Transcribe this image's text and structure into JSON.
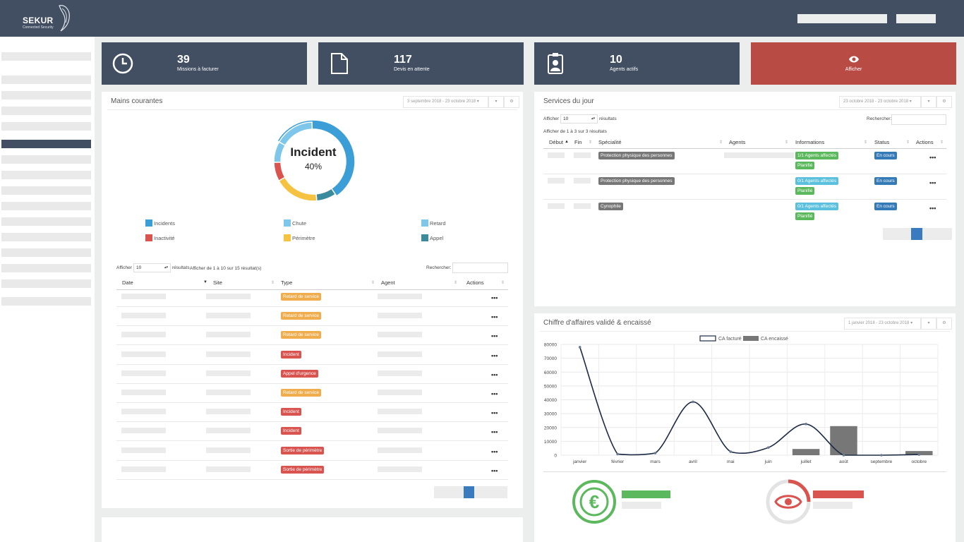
{
  "brand": {
    "name": "SEKUR",
    "tagline": "Connected Security"
  },
  "tiles": [
    {
      "number": "39",
      "label": "Missions à facturer",
      "icon": "clock-icon"
    },
    {
      "number": "117",
      "label": "Devis en attente",
      "icon": "document-icon"
    },
    {
      "number": "10",
      "label": "Agents actifs",
      "icon": "badge-icon"
    },
    {
      "label": "Afficher",
      "icon": "eye-icon"
    }
  ],
  "mains": {
    "title": "Mains courantes",
    "date_range": "3 septembre 2018 - 23 octobre 2018",
    "donut_title": "Incident",
    "donut_percent": "40%",
    "legend": [
      {
        "label": "Incidents",
        "color": "#3b9ed6"
      },
      {
        "label": "Chute",
        "color": "#7fc7ea"
      },
      {
        "label": "Retard",
        "color": "#7fc7ea"
      },
      {
        "label": "Inactivité",
        "color": "#d9534f"
      },
      {
        "label": "Périmètre",
        "color": "#f5c242"
      },
      {
        "label": "Appel",
        "color": "#3a8b9c"
      }
    ],
    "show_label": "Afficher",
    "page_size": "10",
    "results_label": "résultats",
    "info": "Afficher de 1 à 10 sur 15 résultat(s)",
    "search_label": "Rechercher:",
    "columns": [
      "Date",
      "Site",
      "Type",
      "Agent",
      "Actions"
    ],
    "rows": [
      {
        "type": "Retard de service",
        "color": "orange"
      },
      {
        "type": "Retard de service",
        "color": "orange"
      },
      {
        "type": "Retard de service",
        "color": "orange"
      },
      {
        "type": "Incident",
        "color": "red"
      },
      {
        "type": "Appel d'urgence",
        "color": "red"
      },
      {
        "type": "Retard de service",
        "color": "orange"
      },
      {
        "type": "Incident",
        "color": "red"
      },
      {
        "type": "Incident",
        "color": "red"
      },
      {
        "type": "Sortie de périmètre",
        "color": "red"
      },
      {
        "type": "Sortie de périmètre",
        "color": "red"
      }
    ],
    "actions_glyph": "•••"
  },
  "services": {
    "title": "Services du jour",
    "date_range": "23 octobre 2018 - 23 octobre 2018",
    "show_label": "Afficher",
    "page_size": "10",
    "results_label": "résultats",
    "search_label": "Rechercher:",
    "info": "Afficher de 1 à 3 sur 3 résultats",
    "columns": [
      "Début",
      "Fin",
      "Spécialité",
      "Agents",
      "Informations",
      "Status",
      "Actions"
    ],
    "rows": [
      {
        "specialite": "Protection physique des personnes",
        "info1": "1/1 Agents affectés",
        "info1_color": "green",
        "info2": "Planifié",
        "status": "En cours"
      },
      {
        "specialite": "Protection physique des personnes",
        "info1": "0/1 Agents affectés",
        "info1_color": "cyan",
        "info2": "Planifié",
        "status": "En cours"
      },
      {
        "specialite": "Cynophile",
        "info1": "0/1 Agents affectés",
        "info1_color": "cyan",
        "info2": "Planifié",
        "status": "En cours"
      }
    ],
    "actions_glyph": "•••"
  },
  "ca": {
    "title": "Chiffre d'affaires validé & encaissé",
    "date_range": "1 janvier 2018 - 23 octobre 2018"
  },
  "chart_data": {
    "type": "bar",
    "categories": [
      "janvier",
      "février",
      "mars",
      "avril",
      "mai",
      "juin",
      "juillet",
      "août",
      "septembre",
      "octobre"
    ],
    "series": [
      {
        "name": "CA facturé",
        "type": "line",
        "values": [
          78000,
          800,
          1500,
          38500,
          2500,
          5500,
          22500,
          0,
          0,
          500
        ],
        "color": "#1d2b45"
      },
      {
        "name": "CA encaissé",
        "type": "bar",
        "values": [
          0,
          0,
          0,
          0,
          0,
          0,
          4500,
          21000,
          0,
          3000
        ],
        "color": "#777777"
      }
    ],
    "yticks": [
      "80000",
      "70000",
      "60000",
      "50000",
      "40000",
      "30000",
      "20000",
      "10000",
      "0"
    ],
    "ylim": [
      0,
      80000
    ],
    "legend_position": "top-center",
    "grid": true
  },
  "gauges": [
    {
      "icon": "euro-icon",
      "color": "#5cb85c"
    },
    {
      "icon": "eye-icon",
      "color": "#d9534f"
    }
  ]
}
